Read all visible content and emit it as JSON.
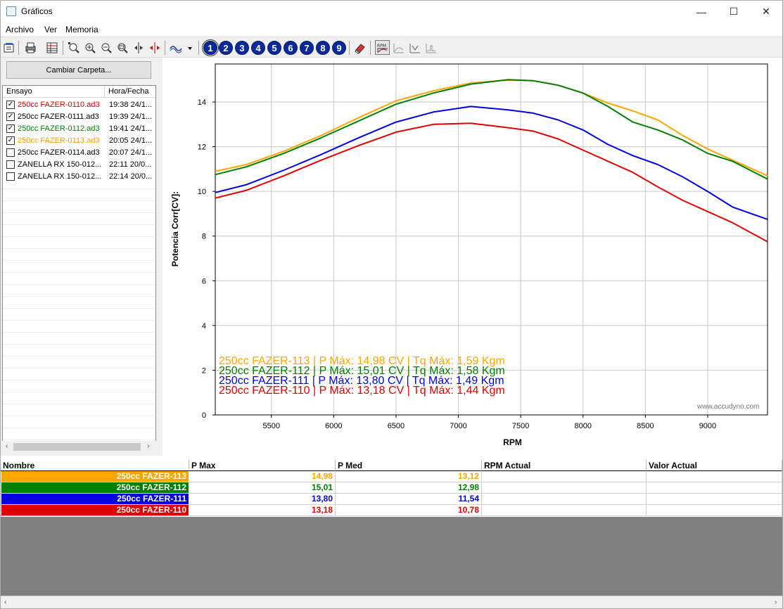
{
  "window": {
    "title": "Gráficos"
  },
  "menu": [
    "Archivo",
    "Ver",
    "Memoria"
  ],
  "toolbar": {
    "icons": [
      "properties-icon",
      "print-icon",
      "table-icon",
      "zoom-fit-icon",
      "zoom-in-icon",
      "zoom-out-icon",
      "zoom-window-icon",
      "cursor-v-icon",
      "cursor-h-icon",
      "curve-type-icon",
      "eraser-icon",
      "rpm-axis-icon",
      "graph-a-icon",
      "graph-b-icon",
      "graph-c-icon"
    ],
    "numbers": [
      "1",
      "2",
      "3",
      "4",
      "5",
      "6",
      "7",
      "8",
      "9"
    ]
  },
  "left": {
    "folder_button": "Cambiar Carpeta...",
    "col_test": "Ensayo",
    "col_date": "Hora/Fecha",
    "files": [
      {
        "name": "250cc FAZER-0110.ad3",
        "date": "19:38 24/1...",
        "checked": true,
        "color": "#e00000"
      },
      {
        "name": "250cc FAZER-0111.ad3",
        "date": "19:39 24/1...",
        "checked": true,
        "color": "#000000"
      },
      {
        "name": "250cc FAZER-0112.ad3",
        "date": "19:41 24/1...",
        "checked": true,
        "color": "#008000"
      },
      {
        "name": "250cc FAZER-0113.ad3",
        "date": "20:05 24/1...",
        "checked": true,
        "color": "#ff9900"
      },
      {
        "name": "250cc FAZER-0114.ad3",
        "date": "20:07 24/1...",
        "checked": false,
        "color": "#000000"
      },
      {
        "name": "ZANELLA RX 150-012...",
        "date": "22:11 20/0...",
        "checked": false,
        "color": "#000000"
      },
      {
        "name": "ZANELLA RX 150-012...",
        "date": "22:14 20/0...",
        "checked": false,
        "color": "#000000"
      }
    ]
  },
  "chart_data": {
    "type": "line",
    "xlabel": "RPM",
    "ylabel": "Potencia Corr[CV]:",
    "xlim": [
      5050,
      9480
    ],
    "ylim": [
      0,
      15.7
    ],
    "xticks": [
      5500,
      6000,
      6500,
      7000,
      7500,
      8000,
      8500,
      9000
    ],
    "yticks": [
      0,
      2,
      4,
      6,
      8,
      10,
      12,
      14
    ],
    "grid": true,
    "series": [
      {
        "name": "250cc FAZER-113",
        "color": "#ffa500",
        "x": [
          5050,
          5300,
          5600,
          5900,
          6200,
          6500,
          6800,
          7100,
          7400,
          7600,
          7800,
          8000,
          8200,
          8400,
          8600,
          8800,
          9000,
          9200,
          9480
        ],
        "y": [
          10.9,
          11.2,
          11.8,
          12.5,
          13.3,
          14.05,
          14.5,
          14.85,
          14.98,
          14.95,
          14.75,
          14.4,
          13.95,
          13.6,
          13.2,
          12.5,
          11.9,
          11.4,
          10.7
        ]
      },
      {
        "name": "250cc FAZER-112",
        "color": "#008000",
        "x": [
          5050,
          5300,
          5600,
          5900,
          6200,
          6500,
          6800,
          7100,
          7400,
          7600,
          7800,
          8000,
          8200,
          8400,
          8600,
          8800,
          9000,
          9200,
          9480
        ],
        "y": [
          10.75,
          11.1,
          11.7,
          12.4,
          13.15,
          13.9,
          14.4,
          14.8,
          15.0,
          14.95,
          14.75,
          14.4,
          13.8,
          13.1,
          12.75,
          12.3,
          11.7,
          11.35,
          10.55
        ]
      },
      {
        "name": "250cc FAZER-111",
        "color": "#0000e0",
        "x": [
          5050,
          5300,
          5600,
          5900,
          6200,
          6500,
          6800,
          7100,
          7400,
          7600,
          7800,
          8000,
          8200,
          8400,
          8600,
          8800,
          9000,
          9200,
          9480
        ],
        "y": [
          9.95,
          10.3,
          10.95,
          11.65,
          12.4,
          13.1,
          13.55,
          13.8,
          13.65,
          13.5,
          13.2,
          12.75,
          12.1,
          11.6,
          11.2,
          10.65,
          10.0,
          9.3,
          8.75
        ]
      },
      {
        "name": "250cc FAZER-110",
        "color": "#e00000",
        "x": [
          5050,
          5300,
          5600,
          5900,
          6200,
          6500,
          6800,
          7100,
          7400,
          7600,
          7800,
          8000,
          8200,
          8400,
          8600,
          8800,
          9000,
          9200,
          9480
        ],
        "y": [
          9.7,
          10.05,
          10.7,
          11.4,
          12.05,
          12.65,
          13.0,
          13.05,
          12.85,
          12.7,
          12.35,
          11.85,
          11.35,
          10.85,
          10.2,
          9.6,
          9.1,
          8.6,
          7.75
        ]
      }
    ],
    "legend": [
      {
        "text": "250cc FAZER-113 | P Máx: 14,98 CV | Tq Máx: 1,59 Kgm",
        "color": "#ffa500"
      },
      {
        "text": "250cc FAZER-112 | P Máx: 15,01 CV | Tq Máx: 1,58 Kgm",
        "color": "#008000"
      },
      {
        "text": "250cc FAZER-111 | P Máx: 13,80 CV | Tq Máx: 1,49 Kgm",
        "color": "#0000e0"
      },
      {
        "text": "250cc FAZER-110 | P Máx: 13,18 CV | Tq Máx: 1,44 Kgm",
        "color": "#e00000"
      }
    ],
    "watermark": "www.accudyno.com"
  },
  "results": {
    "headers": [
      "Nombre",
      "P Max",
      "P Med",
      "RPM Actual",
      "Valor Actual"
    ],
    "rows": [
      {
        "name": "250cc FAZER-113",
        "pmax": "14,98",
        "pmed": "13,12",
        "color": "#ffa500"
      },
      {
        "name": "250cc FAZER-112",
        "pmax": "15,01",
        "pmed": "12,98",
        "color": "#008000"
      },
      {
        "name": "250cc FAZER-111",
        "pmax": "13,80",
        "pmed": "11,54",
        "color": "#0000e0"
      },
      {
        "name": "250cc FAZER-110",
        "pmax": "13,18",
        "pmed": "10,78",
        "color": "#e00000"
      }
    ]
  }
}
